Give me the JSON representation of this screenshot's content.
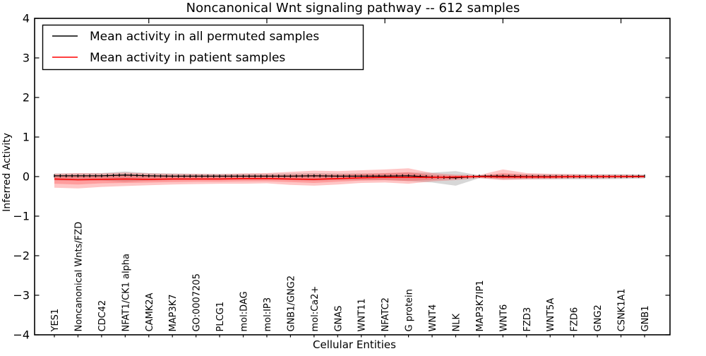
{
  "chart_data": {
    "type": "line",
    "title": "Noncanonical Wnt signaling pathway -- 612 samples",
    "xlabel": "Cellular Entities",
    "ylabel": "Inferred Activity",
    "ylim": [
      -4,
      4
    ],
    "yticks": [
      4,
      3,
      2,
      1,
      0,
      -1,
      -2,
      -3,
      -4
    ],
    "grid": false,
    "legend_position": "upper left",
    "categories": [
      "YES1",
      "Noncanonical Wnts/FZD",
      "CDC42",
      "NFAT1/CK1 alpha",
      "CAMK2A",
      "MAP3K7",
      "GO:0007205",
      "PLCG1",
      "mol:DAG",
      "mol:IP3",
      "GNB1/GNG2",
      "mol:Ca2+",
      "GNAS",
      "WNT11",
      "NFATC2",
      "G protein",
      "WNT4",
      "NLK",
      "MAP3K7IP1",
      "WNT6",
      "FZD3",
      "WNT5A",
      "FZD6",
      "GNG2",
      "CSNK1A1",
      "GNB1"
    ],
    "series": [
      {
        "name": "Mean activity in all permuted samples",
        "color": "#000000",
        "marker": "plus-ticks",
        "values": [
          0.02,
          0.02,
          0.02,
          0.04,
          0.02,
          0.01,
          0.01,
          0.01,
          0.01,
          0.01,
          0.01,
          0.02,
          0.01,
          0.01,
          0.01,
          0.02,
          -0.01,
          -0.03,
          0.01,
          0.01,
          0.0,
          0.0,
          0.0,
          0.0,
          0.0,
          0.01
        ]
      },
      {
        "name": "Mean activity in patient samples",
        "color": "#ff0000",
        "marker": "none",
        "values": [
          -0.06,
          -0.08,
          -0.07,
          -0.06,
          -0.07,
          -0.06,
          -0.06,
          -0.06,
          -0.05,
          -0.05,
          -0.06,
          -0.07,
          -0.05,
          -0.03,
          -0.02,
          -0.02,
          -0.02,
          -0.01,
          0.0,
          -0.01,
          -0.01,
          -0.01,
          0.0,
          0.0,
          0.0,
          0.0
        ]
      }
    ],
    "bands": [
      {
        "name": "permuted-samples-spread",
        "color": "#8c8c8c",
        "opacity": 0.35,
        "upper": [
          0.08,
          0.08,
          0.09,
          0.13,
          0.09,
          0.08,
          0.07,
          0.07,
          0.07,
          0.07,
          0.08,
          0.09,
          0.08,
          0.08,
          0.08,
          0.1,
          0.1,
          0.14,
          0.03,
          0.06,
          0.06,
          0.06,
          0.06,
          0.06,
          0.06,
          0.05
        ],
        "lower": [
          -0.1,
          -0.1,
          -0.1,
          -0.13,
          -0.1,
          -0.09,
          -0.08,
          -0.08,
          -0.08,
          -0.08,
          -0.09,
          -0.1,
          -0.09,
          -0.09,
          -0.09,
          -0.11,
          -0.15,
          -0.23,
          -0.04,
          -0.07,
          -0.07,
          -0.07,
          -0.07,
          -0.07,
          -0.06,
          -0.05
        ]
      },
      {
        "name": "patient-samples-spread-outer",
        "color": "#ff3333",
        "opacity": 0.28,
        "upper": [
          0.07,
          0.09,
          0.08,
          0.1,
          0.08,
          0.07,
          0.07,
          0.06,
          0.08,
          0.09,
          0.12,
          0.15,
          0.14,
          0.16,
          0.18,
          0.21,
          0.09,
          0.05,
          0.04,
          0.18,
          0.09,
          0.07,
          0.06,
          0.05,
          0.05,
          0.04
        ],
        "lower": [
          -0.28,
          -0.3,
          -0.26,
          -0.24,
          -0.22,
          -0.2,
          -0.19,
          -0.18,
          -0.18,
          -0.17,
          -0.21,
          -0.23,
          -0.2,
          -0.16,
          -0.15,
          -0.18,
          -0.12,
          -0.09,
          -0.04,
          -0.09,
          -0.07,
          -0.06,
          -0.05,
          -0.05,
          -0.04,
          -0.03
        ]
      },
      {
        "name": "patient-samples-spread-inner",
        "color": "#ff3333",
        "opacity": 0.28,
        "upper": [
          0.01,
          0.01,
          0.01,
          0.03,
          0.01,
          0.01,
          0.01,
          0.01,
          0.02,
          0.03,
          0.04,
          0.05,
          0.05,
          0.07,
          0.09,
          0.11,
          0.04,
          0.02,
          0.02,
          0.09,
          0.05,
          0.03,
          0.03,
          0.03,
          0.03,
          0.02
        ],
        "lower": [
          -0.18,
          -0.2,
          -0.17,
          -0.16,
          -0.15,
          -0.14,
          -0.13,
          -0.13,
          -0.12,
          -0.12,
          -0.14,
          -0.16,
          -0.13,
          -0.1,
          -0.09,
          -0.11,
          -0.08,
          -0.05,
          -0.02,
          -0.05,
          -0.04,
          -0.04,
          -0.03,
          -0.03,
          -0.02,
          -0.02
        ]
      }
    ],
    "top_tick_indices": [
      4,
      9,
      14,
      19,
      24
    ]
  }
}
